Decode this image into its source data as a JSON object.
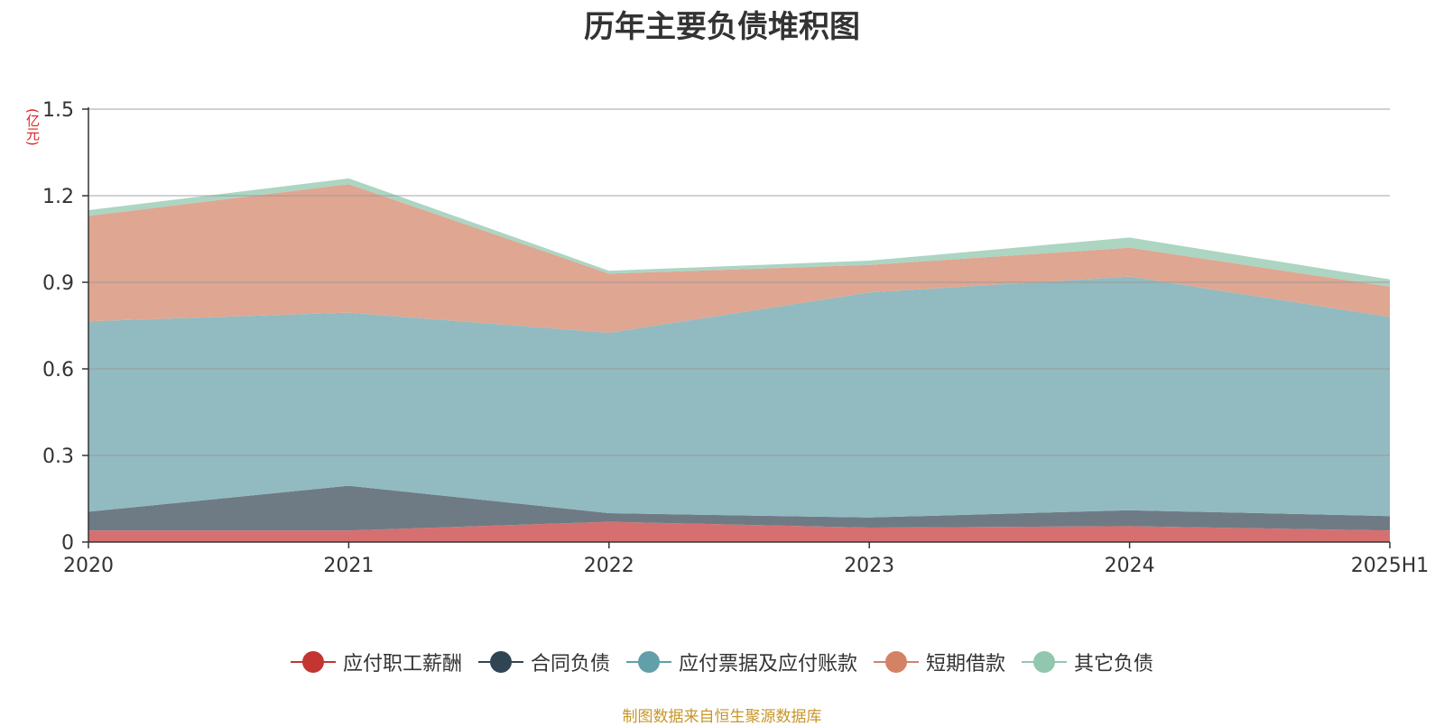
{
  "chart_data": {
    "type": "area",
    "stacked": true,
    "title": "历年主要负债堆积图",
    "ylabel": "(亿元)",
    "x": [
      "2020",
      "2021",
      "2022",
      "2023",
      "2024",
      "2025H1"
    ],
    "ylim": [
      0,
      1.5
    ],
    "yticks": [
      "0",
      "0.3",
      "0.6",
      "0.9",
      "1.2",
      "1.5"
    ],
    "grid": true,
    "legend_position": "bottom",
    "series": [
      {
        "name": "应付职工薪酬",
        "color": "#c23531",
        "fill": "#d67070",
        "values": [
          0.04,
          0.04,
          0.07,
          0.05,
          0.055,
          0.04
        ]
      },
      {
        "name": "合同负债",
        "color": "#2f4554",
        "fill": "#6e7b85",
        "values": [
          0.065,
          0.155,
          0.03,
          0.035,
          0.055,
          0.05
        ]
      },
      {
        "name": "应付票据及应付账款",
        "color": "#61a0a8",
        "fill": "#92bac1",
        "values": [
          0.66,
          0.6,
          0.625,
          0.78,
          0.81,
          0.69
        ]
      },
      {
        "name": "短期借款",
        "color": "#d48265",
        "fill": "#dfa691",
        "values": [
          0.365,
          0.445,
          0.205,
          0.095,
          0.1,
          0.105
        ]
      },
      {
        "name": "其它负债",
        "color": "#91c7ae",
        "fill": "#acd5c2",
        "values": [
          0.02,
          0.02,
          0.01,
          0.015,
          0.035,
          0.025
        ]
      }
    ]
  },
  "source_note": "制图数据来自恒生聚源数据库"
}
